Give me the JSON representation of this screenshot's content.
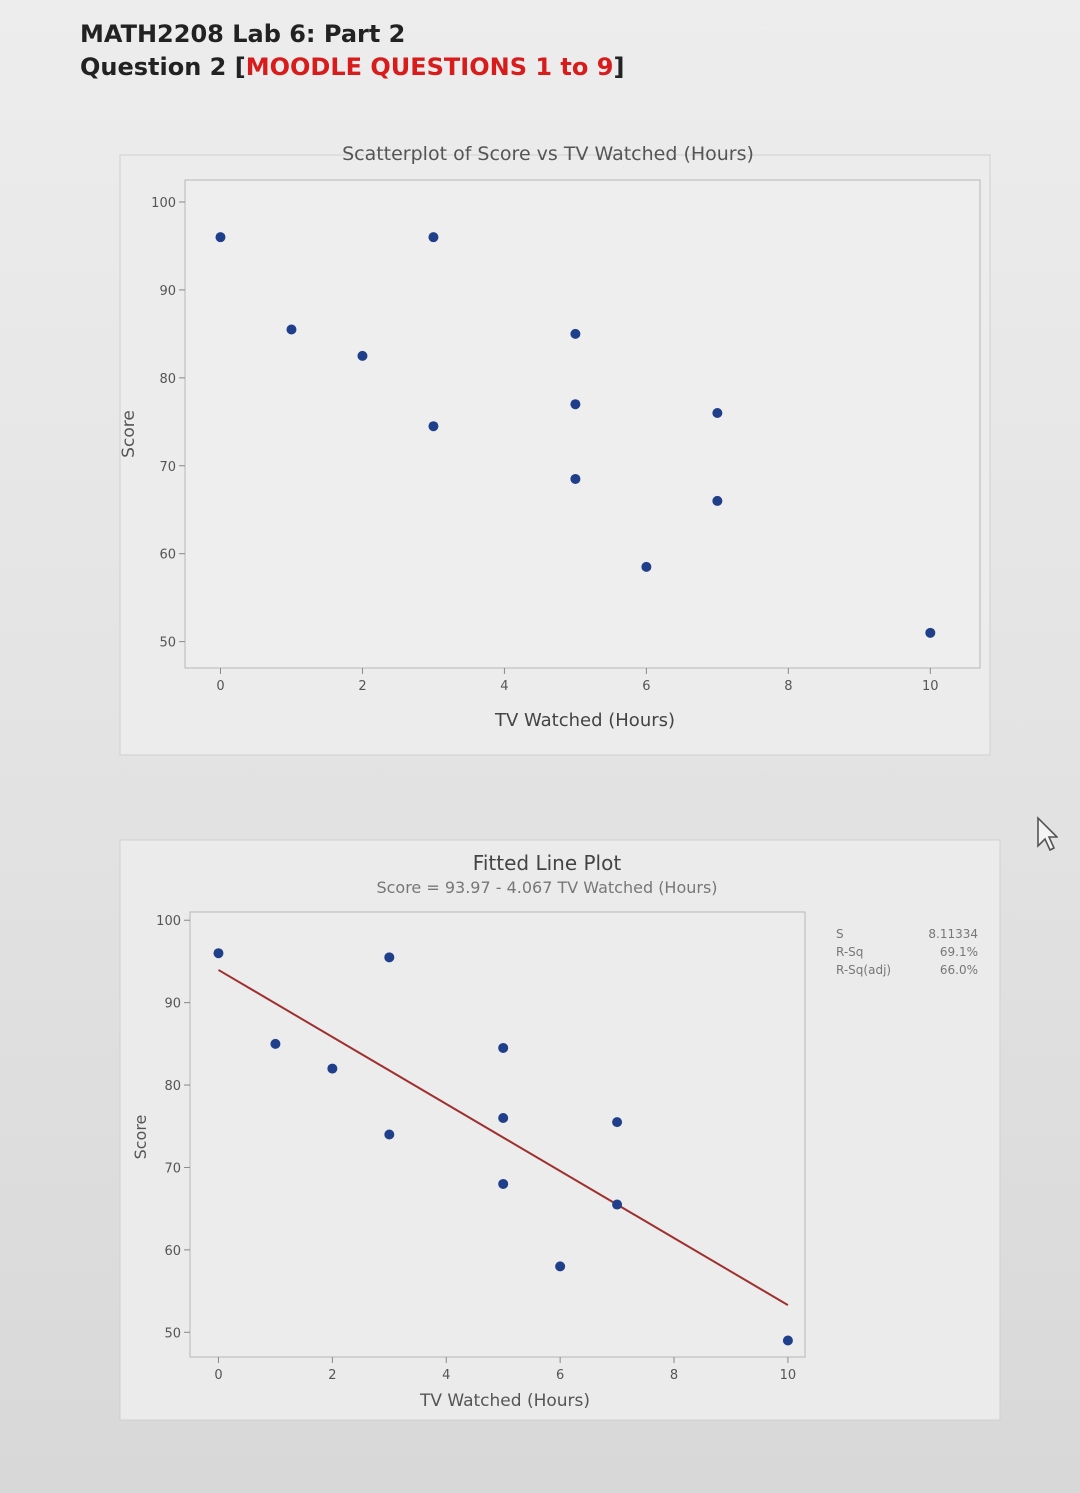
{
  "header": {
    "line1": "MATH2208 Lab 6: Part 2",
    "line2_prefix": "Question 2 [",
    "line2_highlight": "MOODLE QUESTIONS 1 to 9",
    "line2_suffix": "]"
  },
  "colors": {
    "accent": "#d81c1c",
    "point": "#1f3f8a",
    "fit_line": "#a03030"
  },
  "chart_data": [
    {
      "type": "scatter",
      "title": "Scatterplot of Score vs TV Watched (Hours)",
      "xlabel": "TV Watched (Hours)",
      "ylabel": "Score",
      "xlim": [
        -0.5,
        10.7
      ],
      "ylim": [
        47,
        102.5
      ],
      "xticks": [
        0,
        2,
        4,
        6,
        8,
        10
      ],
      "yticks": [
        50,
        60,
        70,
        80,
        90,
        100
      ],
      "grid": false,
      "series": [
        {
          "points": [
            [
              0,
              96
            ],
            [
              1,
              85.5
            ],
            [
              2,
              82.5
            ],
            [
              3,
              96
            ],
            [
              3,
              74.5
            ],
            [
              5,
              85
            ],
            [
              5,
              77
            ],
            [
              5,
              68.5
            ],
            [
              6,
              58.5
            ],
            [
              7,
              76
            ],
            [
              7,
              66
            ],
            [
              10,
              51
            ]
          ]
        }
      ]
    },
    {
      "type": "scatter",
      "title": "Fitted Line Plot",
      "subtitle": "Score = 93.97 - 4.067 TV Watched (Hours)",
      "xlabel": "TV Watched (Hours)",
      "ylabel": "Score",
      "xlim": [
        -0.5,
        10.3
      ],
      "ylim": [
        47,
        101
      ],
      "xticks": [
        0,
        2,
        4,
        6,
        8,
        10
      ],
      "yticks": [
        50,
        60,
        70,
        80,
        90,
        100
      ],
      "grid": false,
      "series": [
        {
          "points": [
            [
              0,
              96
            ],
            [
              1,
              85
            ],
            [
              2,
              82
            ],
            [
              3,
              95.5
            ],
            [
              3,
              74
            ],
            [
              5,
              84.5
            ],
            [
              5,
              76
            ],
            [
              5,
              68
            ],
            [
              6,
              58
            ],
            [
              7,
              75.5
            ],
            [
              7,
              65.5
            ],
            [
              10,
              49
            ]
          ]
        }
      ],
      "fit": {
        "intercept": 93.97,
        "slope": -4.067,
        "x_range": [
          0,
          10
        ]
      },
      "stats": [
        {
          "label": "S",
          "value": "8.11334"
        },
        {
          "label": "R-Sq",
          "value": "69.1%"
        },
        {
          "label": "R-Sq(adj)",
          "value": "66.0%"
        }
      ]
    }
  ]
}
